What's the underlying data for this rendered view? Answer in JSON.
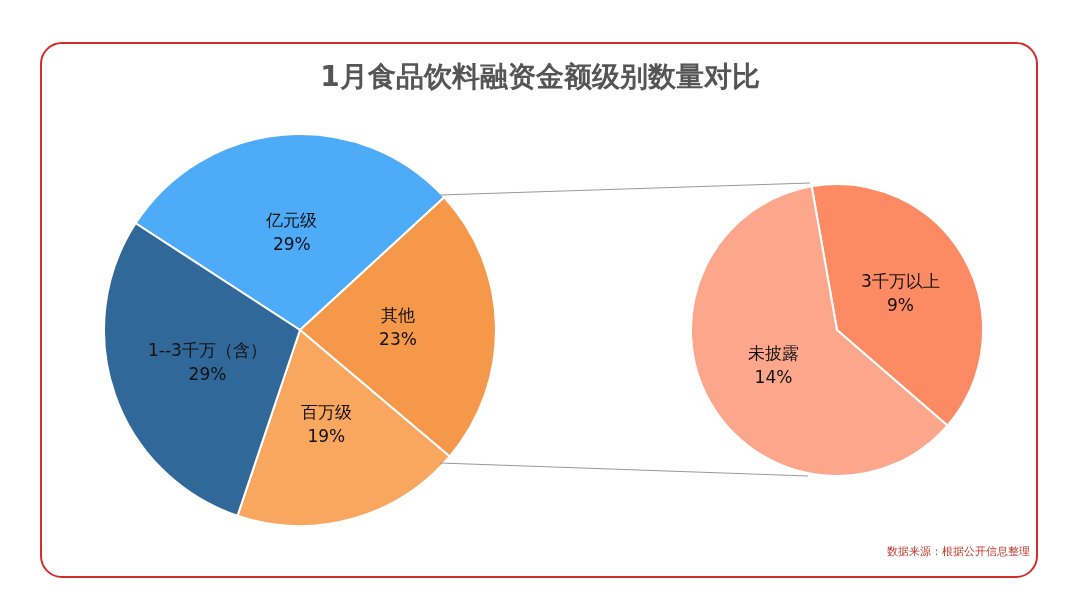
{
  "chart_data": [
    {
      "type": "pie",
      "title": "1月食品饮料融资金额级别数量对比",
      "categories": [
        "亿元级",
        "其他",
        "百万级",
        "1--3千万（含）"
      ],
      "values": [
        29,
        23,
        19,
        29
      ],
      "colors": [
        "#4dabf7",
        "#f5984a",
        "#f9a65e",
        "#31689a"
      ],
      "value_labels": [
        "29%",
        "23%",
        "19%",
        "29%"
      ],
      "legend": false
    },
    {
      "type": "pie",
      "categories": [
        "3千万以上",
        "未披露"
      ],
      "values": [
        9,
        14
      ],
      "colors": [
        "#fc8a63",
        "#fca78b"
      ],
      "value_labels": [
        "9%",
        "14%"
      ],
      "legend": false,
      "annotations": [
        "数据来源：根据公开信息整理"
      ]
    }
  ]
}
